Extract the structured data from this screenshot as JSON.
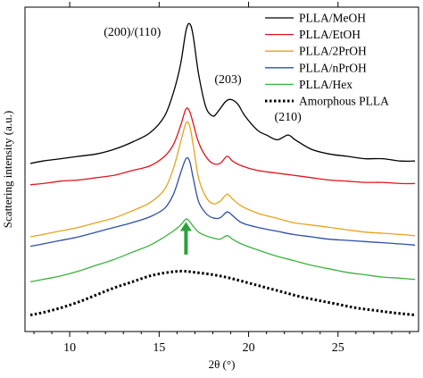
{
  "chart_data": {
    "type": "line",
    "xlabel": "2θ (°)",
    "ylabel": "Scattering intensity (a.u.)",
    "xlim": [
      7.5,
      29.5
    ],
    "xticks": [
      "10",
      "15",
      "20",
      "25"
    ],
    "yticks_labeled": false,
    "grid": false,
    "legend_position": "top-right",
    "series": [
      {
        "name": "PLLA/MeOH",
        "color": "#000000",
        "dash": "solid",
        "points": [
          [
            7.8,
            7.6
          ],
          [
            8.5,
            7.7
          ],
          [
            9.5,
            7.8
          ],
          [
            10.5,
            7.9
          ],
          [
            11.5,
            8.0
          ],
          [
            12.5,
            8.2
          ],
          [
            13.5,
            8.5
          ],
          [
            14.5,
            8.9
          ],
          [
            15.3,
            9.6
          ],
          [
            15.8,
            10.6
          ],
          [
            16.2,
            11.8
          ],
          [
            16.5,
            13.2
          ],
          [
            16.7,
            13.5
          ],
          [
            16.9,
            13.0
          ],
          [
            17.2,
            11.4
          ],
          [
            17.6,
            10.0
          ],
          [
            18.0,
            9.6
          ],
          [
            18.3,
            9.8
          ],
          [
            18.7,
            10.2
          ],
          [
            19.0,
            10.3
          ],
          [
            19.4,
            10.1
          ],
          [
            19.8,
            9.6
          ],
          [
            20.5,
            9.0
          ],
          [
            21.0,
            8.8
          ],
          [
            21.6,
            8.6
          ],
          [
            22.2,
            8.8
          ],
          [
            22.6,
            8.6
          ],
          [
            23.5,
            8.2
          ],
          [
            24.5,
            8.0
          ],
          [
            25.5,
            7.9
          ],
          [
            26.5,
            7.8
          ],
          [
            27.5,
            7.8
          ],
          [
            28.5,
            7.7
          ],
          [
            29.3,
            7.7
          ]
        ]
      },
      {
        "name": "PLLA/EtOH",
        "color": "#e2141c",
        "dash": "solid",
        "points": [
          [
            7.8,
            6.7
          ],
          [
            8.5,
            6.75
          ],
          [
            9.5,
            6.85
          ],
          [
            10.5,
            6.9
          ],
          [
            11.5,
            7.0
          ],
          [
            12.5,
            7.1
          ],
          [
            13.5,
            7.3
          ],
          [
            14.5,
            7.5
          ],
          [
            15.3,
            7.9
          ],
          [
            15.8,
            8.4
          ],
          [
            16.2,
            9.2
          ],
          [
            16.5,
            9.9
          ],
          [
            16.7,
            9.8
          ],
          [
            16.9,
            9.3
          ],
          [
            17.2,
            8.5
          ],
          [
            17.6,
            7.9
          ],
          [
            18.0,
            7.6
          ],
          [
            18.4,
            7.6
          ],
          [
            18.8,
            7.9
          ],
          [
            19.1,
            7.7
          ],
          [
            19.6,
            7.5
          ],
          [
            20.5,
            7.3
          ],
          [
            21.5,
            7.2
          ],
          [
            22.5,
            7.1
          ],
          [
            23.5,
            7.0
          ],
          [
            24.5,
            6.9
          ],
          [
            25.5,
            6.85
          ],
          [
            26.5,
            6.8
          ],
          [
            27.5,
            6.8
          ],
          [
            28.5,
            6.75
          ],
          [
            29.3,
            6.75
          ]
        ]
      },
      {
        "name": "PLLA/2PrOH",
        "color": "#e8a21c",
        "dash": "solid",
        "points": [
          [
            7.8,
            4.5
          ],
          [
            8.5,
            4.6
          ],
          [
            9.5,
            4.75
          ],
          [
            10.5,
            4.9
          ],
          [
            11.5,
            5.1
          ],
          [
            12.5,
            5.3
          ],
          [
            13.5,
            5.6
          ],
          [
            14.5,
            5.95
          ],
          [
            15.3,
            6.5
          ],
          [
            15.8,
            7.4
          ],
          [
            16.2,
            8.5
          ],
          [
            16.5,
            9.3
          ],
          [
            16.7,
            9.2
          ],
          [
            16.9,
            8.4
          ],
          [
            17.2,
            7.0
          ],
          [
            17.6,
            6.2
          ],
          [
            18.0,
            5.9
          ],
          [
            18.4,
            6.0
          ],
          [
            18.8,
            6.3
          ],
          [
            19.1,
            6.1
          ],
          [
            19.6,
            5.8
          ],
          [
            20.5,
            5.5
          ],
          [
            21.5,
            5.3
          ],
          [
            22.5,
            5.1
          ],
          [
            23.5,
            5.0
          ],
          [
            24.5,
            4.9
          ],
          [
            25.5,
            4.8
          ],
          [
            26.5,
            4.7
          ],
          [
            27.5,
            4.65
          ],
          [
            28.5,
            4.6
          ],
          [
            29.3,
            4.55
          ]
        ]
      },
      {
        "name": "PLLA/nPrOH",
        "color": "#2e4fa8",
        "dash": "solid",
        "points": [
          [
            7.8,
            4.1
          ],
          [
            8.5,
            4.2
          ],
          [
            9.5,
            4.35
          ],
          [
            10.5,
            4.5
          ],
          [
            11.5,
            4.7
          ],
          [
            12.5,
            4.9
          ],
          [
            13.5,
            5.1
          ],
          [
            14.5,
            5.35
          ],
          [
            15.3,
            5.7
          ],
          [
            15.8,
            6.3
          ],
          [
            16.2,
            7.2
          ],
          [
            16.5,
            7.8
          ],
          [
            16.7,
            7.7
          ],
          [
            16.9,
            7.0
          ],
          [
            17.2,
            6.0
          ],
          [
            17.6,
            5.5
          ],
          [
            18.0,
            5.3
          ],
          [
            18.4,
            5.3
          ],
          [
            18.8,
            5.55
          ],
          [
            19.1,
            5.4
          ],
          [
            19.6,
            5.1
          ],
          [
            20.5,
            4.9
          ],
          [
            21.5,
            4.75
          ],
          [
            22.5,
            4.6
          ],
          [
            23.5,
            4.5
          ],
          [
            24.5,
            4.4
          ],
          [
            25.5,
            4.35
          ],
          [
            26.5,
            4.3
          ],
          [
            27.5,
            4.25
          ],
          [
            28.5,
            4.2
          ],
          [
            29.3,
            4.15
          ]
        ]
      },
      {
        "name": "PLLA/Hex",
        "color": "#3ab23c",
        "dash": "solid",
        "points": [
          [
            7.8,
            2.6
          ],
          [
            8.5,
            2.7
          ],
          [
            9.5,
            2.85
          ],
          [
            10.5,
            3.05
          ],
          [
            11.5,
            3.3
          ],
          [
            12.5,
            3.55
          ],
          [
            13.5,
            3.85
          ],
          [
            14.5,
            4.15
          ],
          [
            15.3,
            4.5
          ],
          [
            15.8,
            4.75
          ],
          [
            16.2,
            5.0
          ],
          [
            16.5,
            5.25
          ],
          [
            16.7,
            5.15
          ],
          [
            16.9,
            4.95
          ],
          [
            17.2,
            4.7
          ],
          [
            17.6,
            4.55
          ],
          [
            18.0,
            4.45
          ],
          [
            18.4,
            4.4
          ],
          [
            18.8,
            4.55
          ],
          [
            19.1,
            4.4
          ],
          [
            19.6,
            4.2
          ],
          [
            20.5,
            3.95
          ],
          [
            21.5,
            3.7
          ],
          [
            22.5,
            3.5
          ],
          [
            23.5,
            3.3
          ],
          [
            24.5,
            3.15
          ],
          [
            25.5,
            3.0
          ],
          [
            26.5,
            2.9
          ],
          [
            27.5,
            2.8
          ],
          [
            28.5,
            2.75
          ],
          [
            29.3,
            2.7
          ]
        ]
      },
      {
        "name": "Amorphous PLLA",
        "color": "#000000",
        "dash": "dotted",
        "points": [
          [
            7.8,
            1.2
          ],
          [
            8.5,
            1.3
          ],
          [
            9.5,
            1.5
          ],
          [
            10.5,
            1.75
          ],
          [
            11.5,
            2.05
          ],
          [
            12.5,
            2.35
          ],
          [
            13.5,
            2.6
          ],
          [
            14.5,
            2.85
          ],
          [
            15.5,
            3.0
          ],
          [
            16.3,
            3.05
          ],
          [
            17.0,
            3.0
          ],
          [
            18.0,
            2.9
          ],
          [
            19.0,
            2.75
          ],
          [
            20.0,
            2.55
          ],
          [
            21.0,
            2.35
          ],
          [
            22.0,
            2.15
          ],
          [
            23.0,
            1.95
          ],
          [
            24.0,
            1.8
          ],
          [
            25.0,
            1.65
          ],
          [
            26.0,
            1.5
          ],
          [
            27.0,
            1.4
          ],
          [
            28.0,
            1.3
          ],
          [
            29.3,
            1.2
          ]
        ]
      }
    ],
    "annotations": [
      {
        "text": "(200)/(110)",
        "x": 13.5,
        "y": 13.0
      },
      {
        "text": "(203)",
        "x": 18.85,
        "y": 11.0
      },
      {
        "text": "(210)",
        "x": 22.2,
        "y": 9.4
      }
    ],
    "arrow": {
      "x": 16.5,
      "y_from": 3.75,
      "y_to": 5.05,
      "color": "#2aa13a"
    }
  }
}
